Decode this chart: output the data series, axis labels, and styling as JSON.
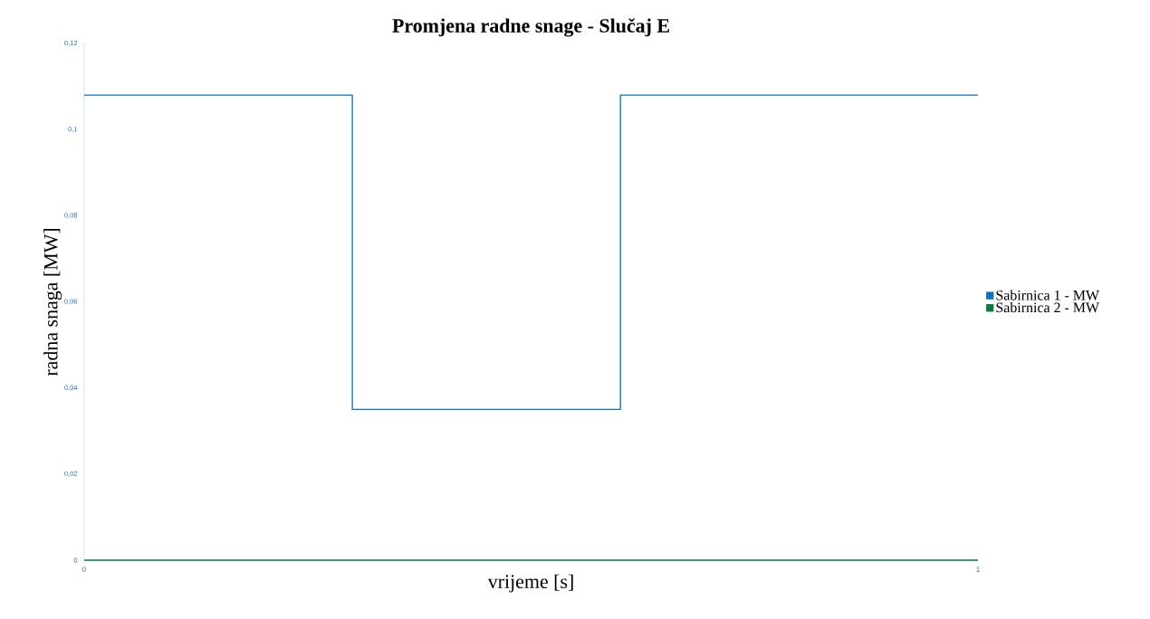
{
  "chart_data": {
    "type": "step",
    "title": "Promjena radne snage - Slučaj E",
    "xlabel": "vrijeme [s]",
    "ylabel": "radna snaga [MW]",
    "xlim": [
      0,
      1
    ],
    "xticks": [
      0,
      1
    ],
    "ylim": [
      0,
      0.12
    ],
    "yticks": [
      {
        "value": 0,
        "label": "0"
      },
      {
        "value": 0.02,
        "label": "0,02"
      },
      {
        "value": 0.04,
        "label": "0,04"
      },
      {
        "value": 0.06,
        "label": "0,06"
      },
      {
        "value": 0.08,
        "label": "0,08"
      },
      {
        "value": 0.1,
        "label": "0,1"
      },
      {
        "value": 0.12,
        "label": "0,12"
      }
    ],
    "series": [
      {
        "name": "Sabirnica 1 - MW",
        "color": "#0a6fc2",
        "x": [
          0,
          0.3,
          0.6,
          1
        ],
        "values": [
          0.108,
          0.035,
          0.108,
          0.108
        ]
      },
      {
        "name": "Sabirnica 2 - MW",
        "color": "#107c41",
        "x": [
          0,
          1
        ],
        "values": [
          0,
          0
        ]
      }
    ],
    "legend": "right",
    "grid": false
  }
}
